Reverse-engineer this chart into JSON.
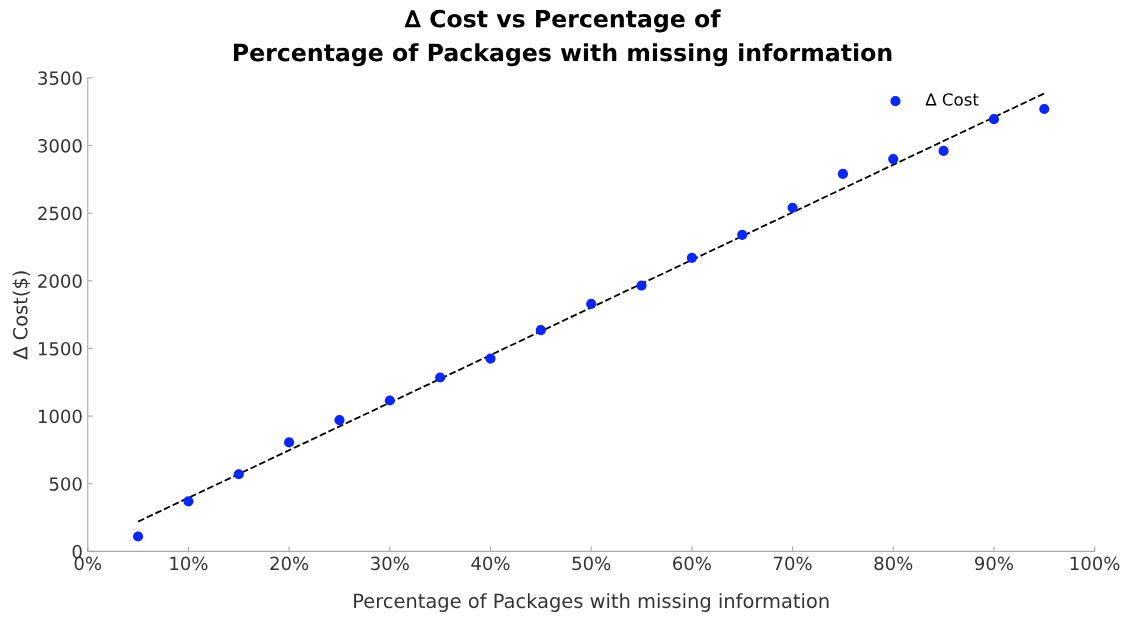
{
  "chart_data": {
    "type": "scatter",
    "title": "∆ Cost vs Percentage of\nPercentage of Packages with missing information",
    "xlabel": "Percentage of Packages with missing information",
    "ylabel": "∆ Cost($)",
    "xlim": [
      0,
      100
    ],
    "xticks": [
      {
        "value": 0,
        "label": "0%"
      },
      {
        "value": 10,
        "label": "10%"
      },
      {
        "value": 20,
        "label": "20%"
      },
      {
        "value": 30,
        "label": "30%"
      },
      {
        "value": 40,
        "label": "40%"
      },
      {
        "value": 50,
        "label": "50%"
      },
      {
        "value": 60,
        "label": "60%"
      },
      {
        "value": 70,
        "label": "70%"
      },
      {
        "value": 80,
        "label": "80%"
      },
      {
        "value": 90,
        "label": "90%"
      },
      {
        "value": 100,
        "label": "100%"
      }
    ],
    "ylim": [
      0,
      3500
    ],
    "yticks": [
      0,
      500,
      1000,
      1500,
      2000,
      2500,
      3000,
      3500
    ],
    "grid": false,
    "legend": "top right",
    "series": [
      {
        "name": "∆ Cost",
        "color": "#0a28f0",
        "marker": "circle",
        "x": [
          5,
          10,
          15,
          20,
          25,
          30,
          35,
          40,
          45,
          50,
          55,
          60,
          65,
          70,
          75,
          80,
          85,
          90,
          95
        ],
        "values": [
          110,
          370,
          570,
          805,
          970,
          1115,
          1285,
          1425,
          1635,
          1830,
          1965,
          2170,
          2340,
          2540,
          2790,
          2900,
          2960,
          3195,
          3270
        ]
      },
      {
        "type": "line",
        "color": "#000000",
        "line_style": "dashed",
        "marker": "none",
        "x": [
          5,
          95
        ],
        "values": [
          220,
          3385
        ]
      }
    ]
  }
}
